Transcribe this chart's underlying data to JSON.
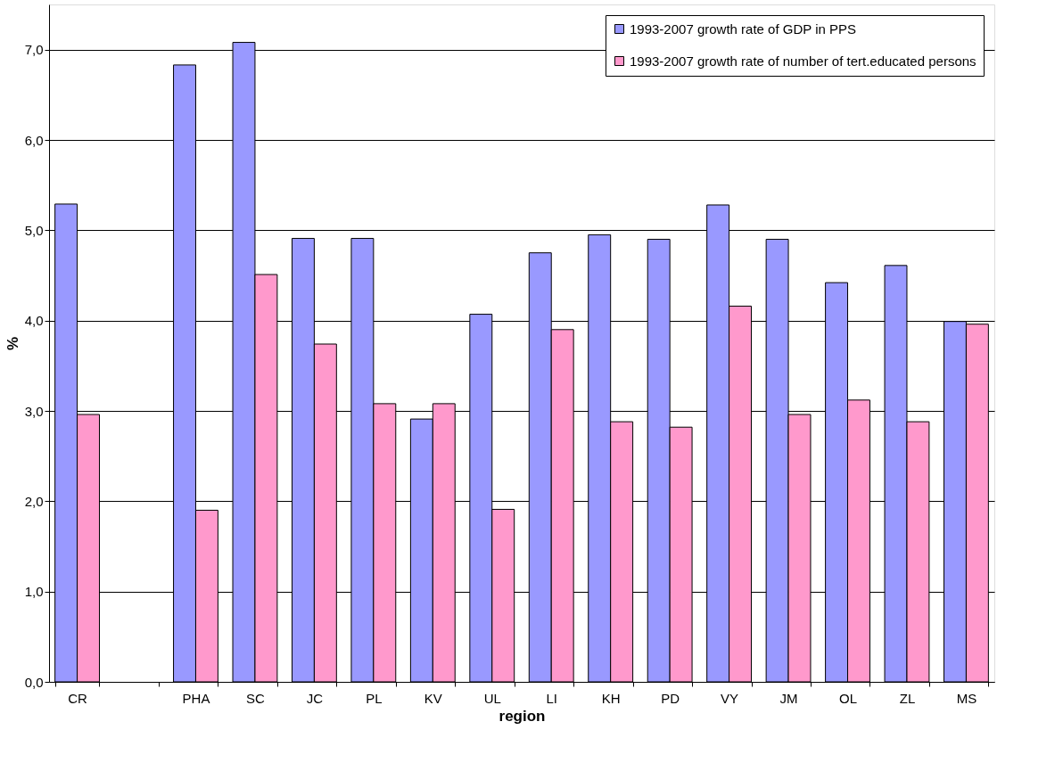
{
  "chart_data": {
    "type": "bar",
    "xlabel": "region",
    "ylabel": "%",
    "categories": [
      "CR",
      null,
      "PHA",
      "SC",
      "JC",
      "PL",
      "KV",
      "UL",
      "LI",
      "KH",
      "PD",
      "VY",
      "JM",
      "OL",
      "ZL",
      "MS"
    ],
    "series": [
      {
        "name": "1993-2007 growth rate of GDP in PPS",
        "color": "#9999ff",
        "values": [
          5.29,
          null,
          6.83,
          7.08,
          4.91,
          4.91,
          2.91,
          4.07,
          4.75,
          4.95,
          4.9,
          5.28,
          4.9,
          4.42,
          4.61,
          3.99
        ]
      },
      {
        "name": "1993-2007 growth rate of number of tert.educated persons",
        "color": "#ff99cc",
        "values": [
          2.96,
          null,
          1.9,
          4.51,
          3.74,
          3.08,
          3.08,
          1.91,
          3.9,
          2.88,
          2.82,
          4.16,
          2.96,
          3.12,
          2.88,
          3.96
        ]
      }
    ],
    "ylim": [
      0,
      7.5
    ],
    "yticks": [
      {
        "value": 0,
        "label": "0,0"
      },
      {
        "value": 1,
        "label": "1,0"
      },
      {
        "value": 2,
        "label": "2,0"
      },
      {
        "value": 3,
        "label": "3,0"
      },
      {
        "value": 4,
        "label": "4,0"
      },
      {
        "value": 5,
        "label": "5,0"
      },
      {
        "value": 6,
        "label": "6,0"
      },
      {
        "value": 7,
        "label": "7,0"
      }
    ],
    "grid": "y",
    "legend": "top right"
  }
}
